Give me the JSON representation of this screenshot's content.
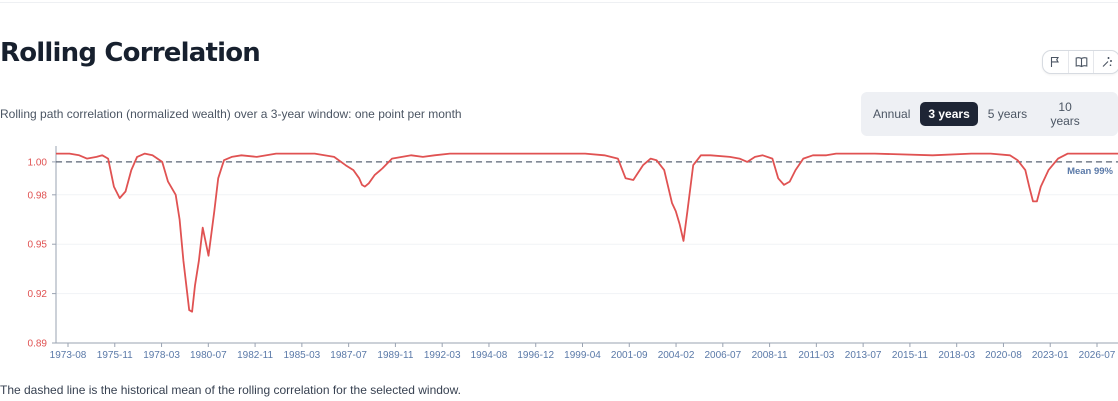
{
  "header": {
    "title": "Rolling Correlation",
    "subtitle": "Rolling path correlation (normalized wealth) over a 3-year window: one point per month"
  },
  "actions": [
    {
      "name": "flag-icon"
    },
    {
      "name": "book-icon"
    },
    {
      "name": "sparkle-icon"
    }
  ],
  "window_options": [
    {
      "label": "Annual",
      "active": false
    },
    {
      "label": "3 years",
      "active": true
    },
    {
      "label": "5 years",
      "active": false
    },
    {
      "label": "10 years",
      "active": false
    }
  ],
  "caption": "The dashed line is the historical mean of the rolling correlation for the selected window.",
  "colors": {
    "line": "#e05252",
    "mean_line": "#5b6474",
    "mean_label": "#5a79a8",
    "y_tick": "#e05252",
    "x_tick": "#5a79a8",
    "active_button": "#1e2535"
  },
  "chart_data": {
    "type": "line",
    "x_tick_labels": [
      "1973-08",
      "1975-11",
      "1978-03",
      "1980-07",
      "1982-11",
      "1985-03",
      "1987-07",
      "1989-11",
      "1992-03",
      "1994-08",
      "1996-12",
      "1999-04",
      "2001-09",
      "2004-02",
      "2006-07",
      "2008-11",
      "2011-03",
      "2013-07",
      "2015-11",
      "2018-03",
      "2020-08",
      "2023-01",
      "2026-07"
    ],
    "y_tick_labels": [
      "1.00",
      "0.98",
      "0.95",
      "0.92",
      "0.89"
    ],
    "y_ticks": [
      1.0,
      0.98,
      0.95,
      0.92,
      0.89
    ],
    "ylim": [
      0.89,
      1.006
    ],
    "xlim": [
      1972.6,
      2027.6
    ],
    "mean_value": 1.0,
    "mean_label": "Mean 99%",
    "series": [
      {
        "x": [
          1972.6,
          1973.3,
          1973.8,
          1974.2,
          1974.7,
          1975.0,
          1975.3,
          1975.6,
          1975.9,
          1976.2,
          1976.5,
          1976.8,
          1977.2,
          1977.6,
          1978.1,
          1978.4,
          1978.8,
          1979.0,
          1979.2,
          1979.35,
          1979.5,
          1979.65,
          1979.8,
          1980.0,
          1980.2,
          1980.5,
          1980.8,
          1981.0,
          1981.3,
          1981.7,
          1982.2,
          1983.0,
          1984.0,
          1985.0,
          1986.0,
          1987.0,
          1987.6,
          1988.0,
          1988.3,
          1988.45,
          1988.6,
          1988.8,
          1989.1,
          1989.5,
          1990.0,
          1991.0,
          1991.6,
          1992.2,
          1993.0,
          1995.0,
          1997.0,
          2000.0,
          2001.0,
          2001.7,
          2002.1,
          2002.5,
          2003.0,
          2003.4,
          2003.7,
          2004.1,
          2004.3,
          2004.5,
          2004.7,
          2004.9,
          2005.1,
          2005.3,
          2005.6,
          2006.0,
          2006.5,
          2007.5,
          2008.0,
          2008.4,
          2008.8,
          2009.2,
          2009.7,
          2010.0,
          2010.3,
          2010.6,
          2010.9,
          2011.3,
          2011.8,
          2012.5,
          2013.0,
          2015.0,
          2018.0,
          2020.0,
          2021.0,
          2022.0,
          2022.4,
          2022.8,
          2023.0,
          2023.2,
          2023.4,
          2023.6,
          2024.0,
          2024.5,
          2025.0,
          2026.0,
          2027.6
        ],
        "y": [
          1.005,
          1.005,
          1.004,
          1.002,
          1.003,
          1.004,
          1.002,
          0.985,
          0.978,
          0.982,
          0.995,
          1.003,
          1.005,
          1.004,
          1.0,
          0.988,
          0.98,
          0.965,
          0.94,
          0.925,
          0.91,
          0.909,
          0.925,
          0.94,
          0.96,
          0.943,
          0.97,
          0.99,
          1.001,
          1.003,
          1.004,
          1.003,
          1.005,
          1.005,
          1.005,
          1.003,
          0.998,
          0.995,
          0.99,
          0.986,
          0.985,
          0.987,
          0.992,
          0.996,
          1.002,
          1.004,
          1.003,
          1.004,
          1.005,
          1.005,
          1.005,
          1.005,
          1.004,
          1.002,
          0.99,
          0.989,
          0.998,
          1.002,
          1.001,
          0.995,
          0.985,
          0.975,
          0.97,
          0.962,
          0.952,
          0.97,
          0.998,
          1.004,
          1.004,
          1.003,
          1.002,
          1.0,
          1.003,
          1.004,
          1.002,
          0.99,
          0.986,
          0.988,
          0.995,
          1.002,
          1.004,
          1.004,
          1.005,
          1.005,
          1.004,
          1.005,
          1.005,
          1.004,
          1.001,
          0.995,
          0.985,
          0.976,
          0.976,
          0.985,
          0.995,
          1.002,
          1.005,
          1.005,
          1.005
        ]
      }
    ]
  }
}
